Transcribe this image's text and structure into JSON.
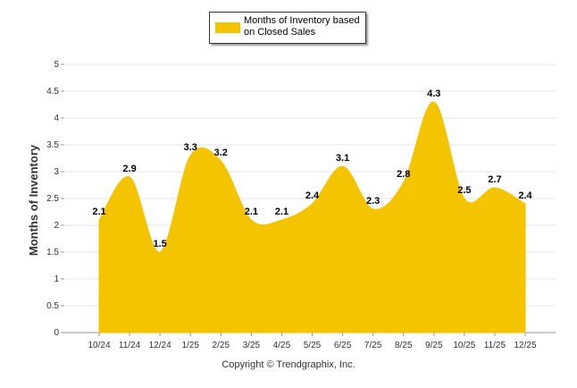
{
  "chart_data": {
    "type": "area",
    "categories": [
      "10/24",
      "11/24",
      "12/24",
      "1/25",
      "2/25",
      "3/25",
      "4/25",
      "5/25",
      "6/25",
      "7/25",
      "8/25",
      "9/25",
      "10/25",
      "11/25",
      "12/25"
    ],
    "series": [
      {
        "name": "Months of Inventory based on Closed Sales",
        "values": [
          2.1,
          2.9,
          1.5,
          3.3,
          3.2,
          2.1,
          2.1,
          2.4,
          3.1,
          2.3,
          2.8,
          4.3,
          2.5,
          2.7,
          2.4
        ]
      }
    ],
    "data_labels": [
      "2.1",
      "2.9",
      "1.5",
      "3.3",
      "3.2",
      "2.1",
      "2.1",
      "2.4",
      "3.1",
      "2.3",
      "2.8",
      "4.3",
      "2.5",
      "2.7",
      "2.4"
    ],
    "ylabel": "Months of Inventory",
    "xlabel": "",
    "ylim": [
      0,
      5
    ],
    "yticks": [
      "0",
      "0.5",
      "1",
      "1.5",
      "2",
      "2.5",
      "3",
      "3.5",
      "4",
      "4.5",
      "5"
    ],
    "grid": true,
    "legend": "top-center",
    "color": "#f5c400"
  },
  "legend": {
    "label": "Months of Inventory based on Closed Sales",
    "color": "#f5c400"
  },
  "footer": {
    "copyright": "Copyright © Trendgraphix, Inc."
  }
}
